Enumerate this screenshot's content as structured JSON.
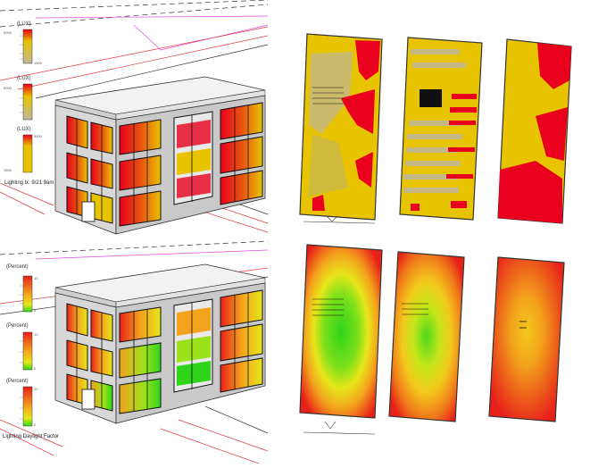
{
  "top_legends": {
    "legend1": {
      "unit": "(LUX)",
      "max": "5000",
      "min": "1500"
    },
    "legend2": {
      "unit": "(LUX)",
      "max": "5000"
    },
    "legend3": {
      "unit": "(LUX)",
      "max": "5000",
      "min": "1500"
    },
    "caption": "Lighting lx: 9/21 9am"
  },
  "bottom_legends": {
    "legend1": {
      "unit": "(Percent)",
      "max": "10",
      "min": "0"
    },
    "legend2": {
      "unit": "(Percent)",
      "max": "10",
      "min": "0"
    },
    "legend3": {
      "unit": "(Percent)",
      "max": "10",
      "min": "0"
    },
    "caption": "Lighting Daylight Factor"
  },
  "colors": {
    "lux_high": "#e8001c",
    "lux_low": "#e8c400",
    "lux_gray": "#bdb79a",
    "df_high": "#e8201a",
    "df_mid": "#f3a21c",
    "df_low": "#2fd41a",
    "wall": "#d8d8d8",
    "wall_dark": "#a9a9a9",
    "line_red": "#e23b3b",
    "line_magenta": "#e04ce0"
  },
  "icons": [
    "bar-chart-legend-icon",
    "building-model-icon",
    "floor-plan-heatmap-icon"
  ]
}
